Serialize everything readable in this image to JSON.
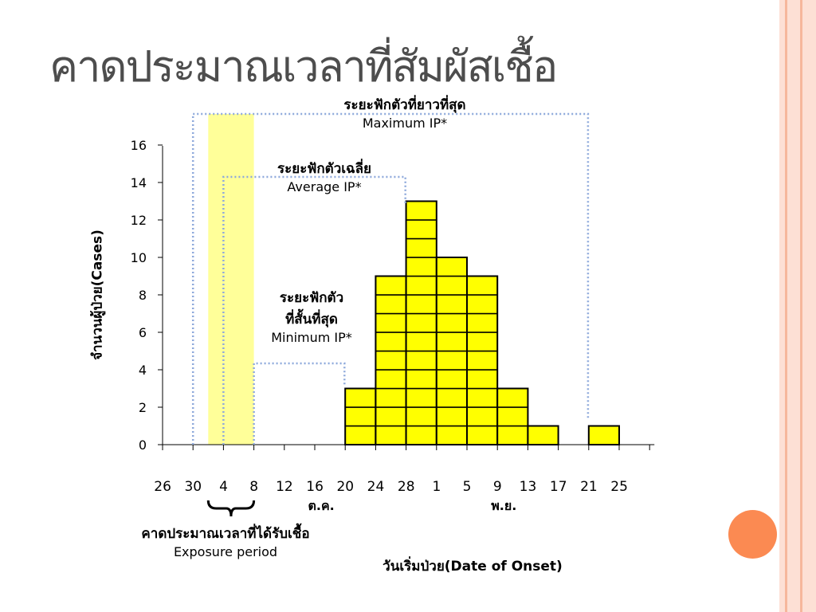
{
  "slide": {
    "title": "คาดประมาณเวลาที่สัมผัสเชื้อ",
    "colors": {
      "accent_circle": "#fb8a52",
      "stripe_light": "#fde0d5",
      "stripe_dark": "#f6b79c",
      "bar_fill": "#ffff00",
      "exposure_fill": "#ffff99",
      "dotted_line": "#8ea9db"
    }
  },
  "annotations": {
    "max_ip_th": "ระยะฟักตัวที่ยาวที่สุด",
    "max_ip_en": "Maximum IP*",
    "avg_ip_th": "ระยะฟักตัวเฉลี่ย",
    "avg_ip_en": "Average IP*",
    "min_ip_th1": "ระยะฟักตัว",
    "min_ip_th2": "ที่สั้นที่สุด",
    "min_ip_en": "Minimum IP*",
    "exposure_th": "คาดประมาณเวลาที่ได้รับเชื้อ",
    "exposure_en": "Exposure period"
  },
  "chart_data": {
    "type": "bar",
    "title": "",
    "xlabel": "วันเริ่มป่วย(Date of Onset)",
    "ylabel": "จำนวนผู้ป่วย(Cases)",
    "ylim": [
      0,
      16
    ],
    "yticks": [
      0,
      2,
      4,
      6,
      8,
      10,
      12,
      14,
      16
    ],
    "x_tick_labels": [
      "26",
      "30",
      "4",
      "8",
      "12",
      "16",
      "20",
      "24",
      "28",
      "1",
      "5",
      "9",
      "13",
      "17",
      "21",
      "25"
    ],
    "month_labels": [
      {
        "label": "ต.ค.",
        "at_tick": "16"
      },
      {
        "label": "พ.ย.",
        "at_tick": "9"
      }
    ],
    "categories": [
      "20",
      "24",
      "28",
      "1",
      "5",
      "9",
      "13",
      "21"
    ],
    "values": [
      3,
      9,
      13,
      10,
      9,
      3,
      1,
      1
    ],
    "bar_style": "stacked unit boxes (one box per case)",
    "exposure_period": {
      "from": "30",
      "to": "4"
    },
    "grid": false,
    "legend": "none"
  }
}
